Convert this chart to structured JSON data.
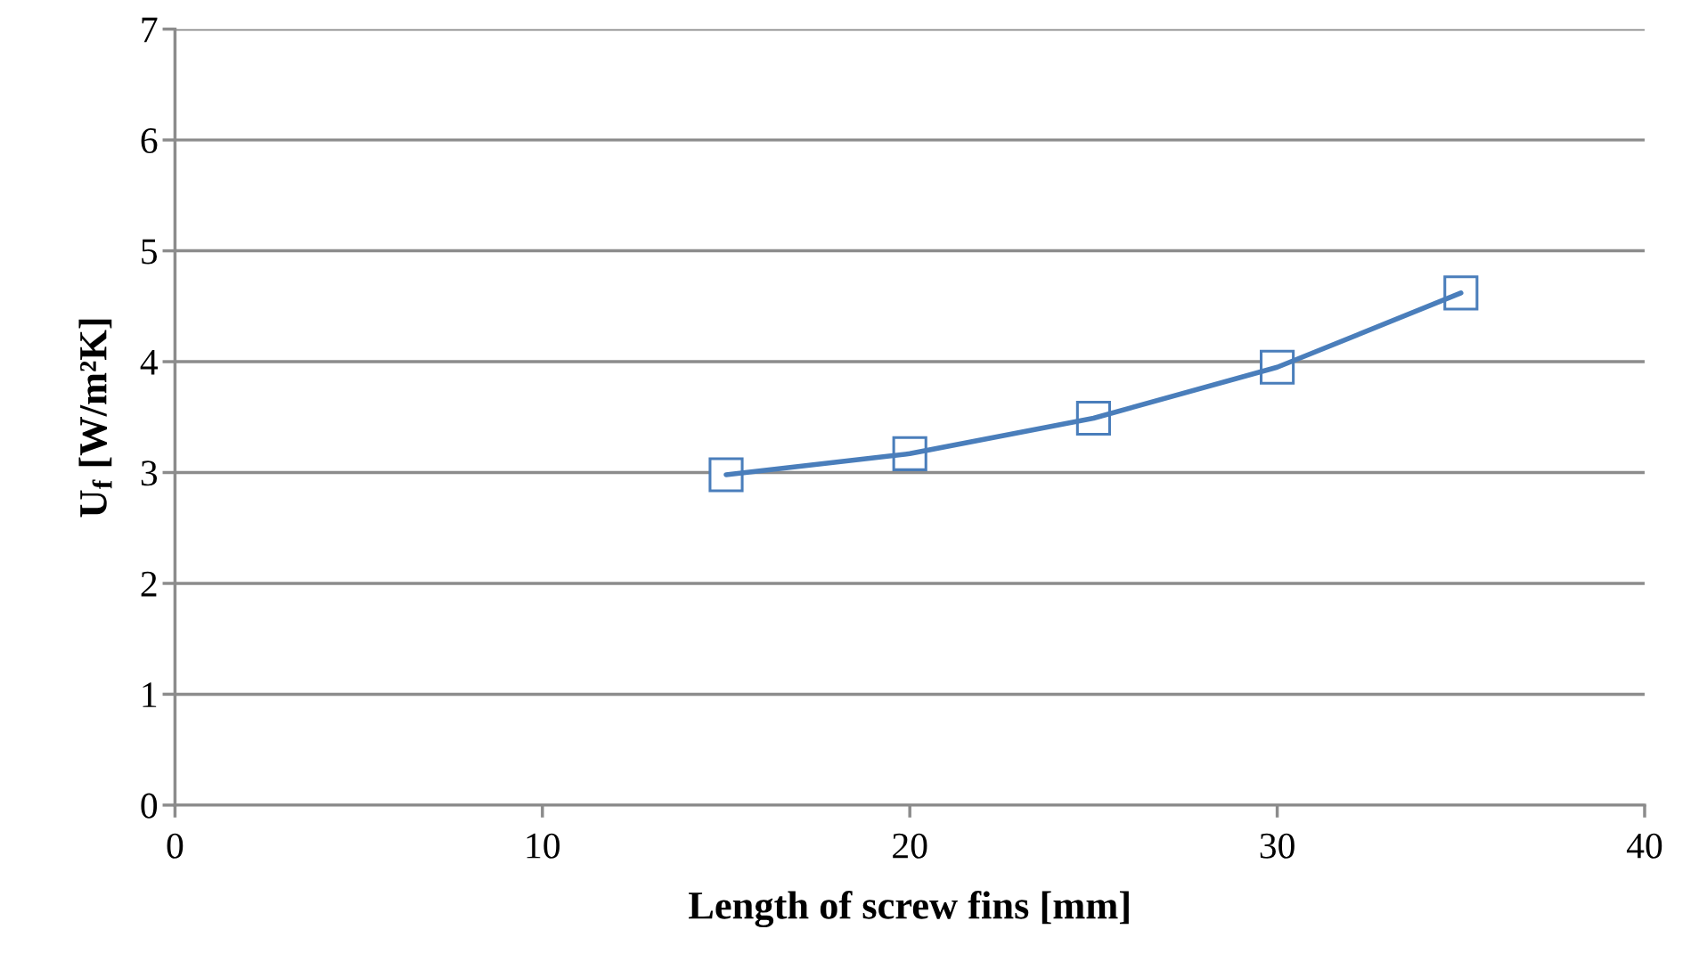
{
  "chart_data": {
    "type": "line",
    "xlabel": "Length of screw fins [mm]",
    "ylabel": "U$_{f}$ [W/m²K]",
    "x": [
      15,
      20,
      25,
      30,
      35
    ],
    "series": [
      {
        "color": "#4a7ebb",
        "values": [
          2.98,
          3.17,
          3.49,
          3.95,
          4.62
        ]
      }
    ],
    "marker": "square",
    "line_style": "solid",
    "grid": "y",
    "xlim": [
      0,
      40
    ],
    "xticks": [
      0,
      10,
      20,
      30,
      40
    ],
    "ylim": [
      0,
      7
    ],
    "yticks": [
      0,
      1,
      2,
      3,
      4,
      5,
      6,
      7
    ]
  }
}
